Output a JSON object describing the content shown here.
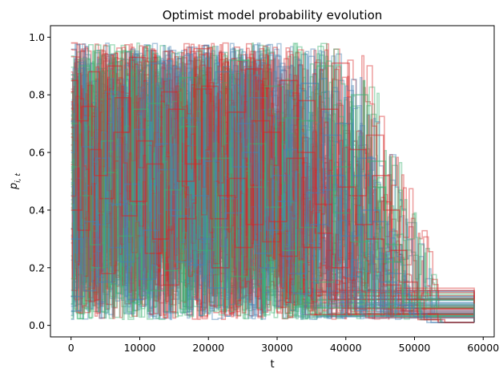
{
  "chart_data": {
    "type": "line",
    "title": "Optimist model probability evolution",
    "xlabel": "t",
    "ylabel_base": "p",
    "ylabel_sub": "i, t",
    "xlim": [
      -3000,
      61600
    ],
    "ylim": [
      -0.04,
      1.04
    ],
    "xticks": [
      0,
      10000,
      20000,
      30000,
      40000,
      50000,
      60000
    ],
    "yticks": [
      0.0,
      0.2,
      0.4,
      0.6,
      0.8,
      1.0
    ],
    "grid": false,
    "legend": "none",
    "series_colors": [
      "#4682b4",
      "#3cb371",
      "#d62728"
    ],
    "series_alpha": 0.55,
    "series": [
      {
        "color_index": 0,
        "x": [
          0,
          1500,
          3200,
          5000,
          7000,
          9200,
          11500,
          13800,
          16000,
          18500,
          21000,
          23500,
          26000,
          28500,
          31000,
          33500,
          36000,
          38500,
          41000,
          43500,
          46000,
          48500,
          51000,
          54000,
          58700
        ],
        "y": [
          0.05,
          0.62,
          0.35,
          0.81,
          0.22,
          0.68,
          0.91,
          0.4,
          0.72,
          0.3,
          0.88,
          0.55,
          0.79,
          0.33,
          0.61,
          0.84,
          0.47,
          0.7,
          0.52,
          0.36,
          0.18,
          0.06,
          0.02,
          0.01,
          0.01
        ]
      },
      {
        "color_index": 1,
        "x": [
          0,
          1200,
          2800,
          4500,
          6500,
          8800,
          11000,
          13500,
          15800,
          18200,
          20600,
          23200,
          25800,
          28200,
          30800,
          33200,
          35800,
          38200,
          40800,
          43200,
          45800,
          48200,
          50800,
          53800,
          58700
        ],
        "y": [
          0.55,
          0.9,
          0.28,
          0.64,
          0.95,
          0.42,
          0.77,
          0.19,
          0.86,
          0.58,
          0.34,
          0.92,
          0.48,
          0.83,
          0.26,
          0.71,
          0.9,
          0.39,
          0.8,
          0.57,
          0.28,
          0.1,
          0.03,
          0.01,
          0.01
        ]
      },
      {
        "color_index": 2,
        "x": [
          0,
          900,
          2500,
          4200,
          6200,
          8500,
          10800,
          13200,
          15500,
          17900,
          20300,
          22800,
          25400,
          27900,
          30400,
          33000,
          35500,
          38000,
          40500,
          43000,
          45500,
          47800,
          50400,
          53400,
          58700
        ],
        "y": [
          0.98,
          0.71,
          0.88,
          0.44,
          0.67,
          0.93,
          0.25,
          0.81,
          0.5,
          0.96,
          0.37,
          0.74,
          0.89,
          0.29,
          0.85,
          0.6,
          0.32,
          0.91,
          0.45,
          0.66,
          0.4,
          0.15,
          0.04,
          0.01,
          0.01
        ]
      },
      {
        "color_index": 0,
        "x": [
          0,
          1800,
          3600,
          5600,
          7800,
          10000,
          12300,
          14600,
          17000,
          19400,
          21800,
          24300,
          26800,
          29300,
          31800,
          34300,
          36800,
          39300,
          41800,
          44300,
          46800,
          49300,
          51800,
          55000,
          58700
        ],
        "y": [
          0.3,
          0.12,
          0.58,
          0.27,
          0.49,
          0.16,
          0.63,
          0.38,
          0.21,
          0.57,
          0.44,
          0.7,
          0.25,
          0.52,
          0.18,
          0.46,
          0.66,
          0.31,
          0.58,
          0.23,
          0.11,
          0.04,
          0.01,
          0.01,
          0.01
        ]
      },
      {
        "color_index": 1,
        "x": [
          0,
          1400,
          3000,
          4800,
          6800,
          9000,
          11300,
          13600,
          16000,
          18400,
          20800,
          23300,
          25800,
          28300,
          30800,
          33300,
          35800,
          38300,
          40800,
          43300,
          45800,
          48300,
          50800,
          53800,
          58700
        ],
        "y": [
          0.7,
          0.45,
          0.2,
          0.53,
          0.31,
          0.75,
          0.12,
          0.47,
          0.69,
          0.26,
          0.58,
          0.17,
          0.63,
          0.41,
          0.72,
          0.34,
          0.15,
          0.55,
          0.29,
          0.48,
          0.22,
          0.08,
          0.02,
          0.01,
          0.01
        ]
      },
      {
        "color_index": 2,
        "x": [
          0,
          1000,
          2700,
          4400,
          6400,
          8700,
          11000,
          13400,
          15700,
          18100,
          20500,
          23000,
          25500,
          28000,
          30500,
          33000,
          35500,
          38000,
          40500,
          43000,
          45500,
          48000,
          50500,
          53500,
          58700
        ],
        "y": [
          0.85,
          0.33,
          0.61,
          0.18,
          0.79,
          0.43,
          0.56,
          0.14,
          0.37,
          0.82,
          0.2,
          0.51,
          0.35,
          0.67,
          0.24,
          0.78,
          0.42,
          0.2,
          0.61,
          0.3,
          0.14,
          0.05,
          0.02,
          0.01,
          0.01
        ]
      },
      {
        "color_index": 0,
        "x": [
          0,
          2000,
          4000,
          6000,
          8200,
          10500,
          12800,
          15200,
          17600,
          20000,
          22400,
          24900,
          27400,
          29900,
          32400,
          34900,
          37400,
          39900,
          42400,
          44900,
          47400,
          49900,
          52400,
          55400,
          58700
        ],
        "y": [
          0.1,
          0.36,
          0.15,
          0.42,
          0.09,
          0.33,
          0.54,
          0.22,
          0.45,
          0.13,
          0.39,
          0.6,
          0.2,
          0.43,
          0.11,
          0.35,
          0.52,
          0.17,
          0.4,
          0.15,
          0.07,
          0.03,
          0.01,
          0.01,
          0.01
        ]
      },
      {
        "color_index": 2,
        "x": [
          0,
          1600,
          3400,
          5300,
          7400,
          9600,
          11900,
          14200,
          16600,
          19000,
          21400,
          23900,
          26400,
          28900,
          31400,
          33900,
          36400,
          38900,
          41400,
          43900,
          46400,
          48900,
          51400,
          54400,
          58700
        ],
        "y": [
          0.4,
          0.76,
          0.52,
          0.9,
          0.38,
          0.64,
          0.3,
          0.75,
          0.56,
          0.83,
          0.45,
          0.27,
          0.71,
          0.36,
          0.58,
          0.27,
          0.75,
          0.48,
          0.35,
          0.52,
          0.26,
          0.09,
          0.02,
          0.01,
          0.01
        ]
      }
    ]
  }
}
